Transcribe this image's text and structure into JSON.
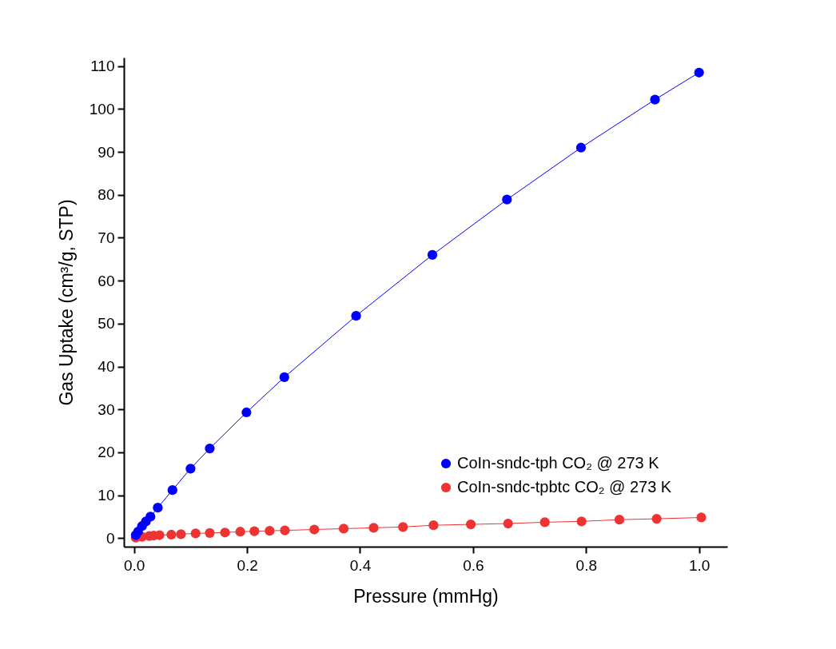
{
  "chart_data": {
    "type": "line",
    "xlabel": "Pressure (mmHg)",
    "ylabel": "Gas Uptake (cm³/g, STP)",
    "xlim": [
      -0.018,
      1.05
    ],
    "ylim": [
      -2,
      112
    ],
    "xticks": [
      {
        "value": 0,
        "label": "0.0"
      },
      {
        "value": 0.2,
        "label": "0.2"
      },
      {
        "value": 0.4,
        "label": "0.4"
      },
      {
        "value": 0.6,
        "label": "0.6"
      },
      {
        "value": 0.8,
        "label": "0.8"
      },
      {
        "value": 1,
        "label": "1.0"
      }
    ],
    "yticks": [
      0,
      10,
      20,
      30,
      40,
      50,
      60,
      70,
      80,
      90,
      100,
      110
    ],
    "grid": false,
    "legend": "bottom right",
    "marker": "circle",
    "line_style": "solid",
    "series": [
      {
        "name": "CoIn-sndc-tph  CO₂ @ 273 K",
        "color": "#0000ff",
        "x": [
          0.003,
          0.007,
          0.014,
          0.021,
          0.029,
          0.042,
          0.068,
          0.1,
          0.134,
          0.199,
          0.266,
          0.393,
          0.528,
          0.66,
          0.791,
          0.922,
          1.0
        ],
        "values": [
          0.7,
          1.5,
          2.8,
          3.9,
          5.0,
          7.1,
          11.2,
          16.2,
          20.9,
          29.3,
          37.5,
          51.8,
          66.0,
          78.9,
          91.0,
          102.2,
          108.5
        ]
      },
      {
        "name": "CoIn-sndc-tpbtc  CO₂ @ 273 K",
        "color": "#ee3333",
        "x": [
          0.003,
          0.014,
          0.027,
          0.035,
          0.045,
          0.066,
          0.083,
          0.109,
          0.134,
          0.161,
          0.188,
          0.213,
          0.24,
          0.267,
          0.319,
          0.371,
          0.424,
          0.476,
          0.53,
          0.596,
          0.662,
          0.727,
          0.792,
          0.859,
          0.925,
          1.004
        ],
        "values": [
          0.1,
          0.3,
          0.5,
          0.6,
          0.7,
          0.8,
          0.9,
          1.1,
          1.2,
          1.3,
          1.5,
          1.6,
          1.7,
          1.8,
          2.0,
          2.2,
          2.4,
          2.6,
          3.0,
          3.2,
          3.4,
          3.7,
          3.9,
          4.3,
          4.5,
          4.8
        ]
      }
    ]
  }
}
